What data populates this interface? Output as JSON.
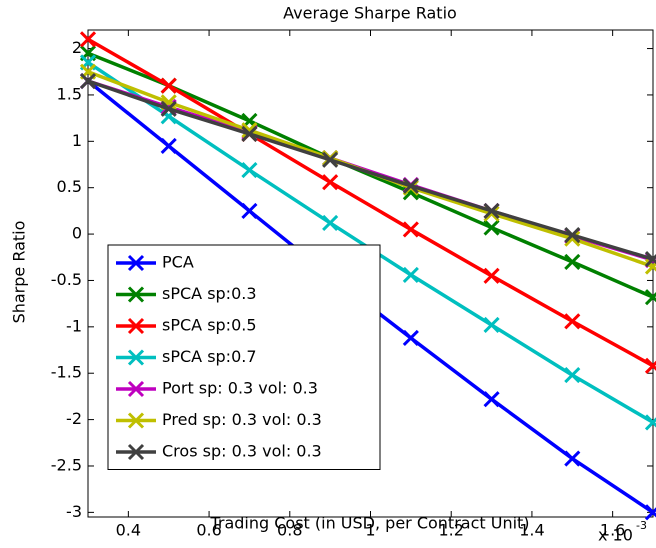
{
  "chart_data": {
    "type": "line",
    "title": "Average Sharpe Ratio",
    "x_label": "Trading Cost (in USD, per Contract Unit)",
    "y_label": "Sharpe Ratio",
    "x_exponent_base": "x 10",
    "x_exponent": "-3",
    "x": [
      0.3,
      0.5,
      0.7,
      0.9,
      1.1,
      1.3,
      1.5,
      1.7
    ],
    "series": [
      {
        "name": "PCA",
        "color": "#0000ff",
        "values": [
          1.65,
          0.95,
          0.25,
          -0.45,
          -1.12,
          -1.78,
          -2.42,
          -3.0
        ]
      },
      {
        "name": "sPCA sp:0.3",
        "color": "#008000",
        "values": [
          1.95,
          1.6,
          1.22,
          0.82,
          0.45,
          0.07,
          -0.3,
          -0.68
        ]
      },
      {
        "name": "sPCA sp:0.5",
        "color": "#ff0000",
        "values": [
          2.1,
          1.6,
          1.08,
          0.56,
          0.05,
          -0.45,
          -0.94,
          -1.42
        ]
      },
      {
        "name": "sPCA sp:0.7",
        "color": "#00bfbf",
        "values": [
          1.85,
          1.27,
          0.69,
          0.12,
          -0.44,
          -0.98,
          -1.52,
          -2.03
        ]
      },
      {
        "name": "Port sp: 0.3 vol: 0.3",
        "color": "#bf00bf",
        "values": [
          1.65,
          1.37,
          1.1,
          0.82,
          0.53,
          0.25,
          -0.02,
          -0.28
        ]
      },
      {
        "name": "Pred sp: 0.3 vol: 0.3",
        "color": "#bfbf00",
        "values": [
          1.75,
          1.42,
          1.12,
          0.82,
          0.5,
          0.22,
          -0.05,
          -0.35
        ]
      },
      {
        "name": "Cros sp: 0.3 vol: 0.3",
        "color": "#404040",
        "values": [
          1.65,
          1.35,
          1.08,
          0.8,
          0.52,
          0.25,
          -0.01,
          -0.27
        ]
      }
    ],
    "xlim": [
      0.3,
      1.7
    ],
    "ylim": [
      -3.05,
      2.2
    ],
    "xticks": [
      0.4,
      0.6,
      0.8,
      1,
      1.2,
      1.4,
      1.6
    ],
    "yticks": [
      -3,
      -2.5,
      -2,
      -1.5,
      -1,
      -0.5,
      0,
      0.5,
      1,
      1.5,
      2
    ],
    "legend": "lower left"
  }
}
